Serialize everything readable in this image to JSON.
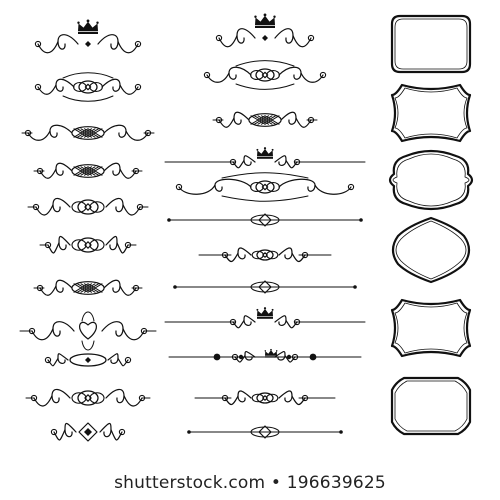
{
  "watermark": {
    "site": "shutterstock.com",
    "separator": "•",
    "image_id": "196639625"
  },
  "colors": {
    "ink": "#111111",
    "background": "#ffffff"
  },
  "elements": {
    "left_column": [
      "crowned-swirl",
      "scroll",
      "lattice",
      "lattice",
      "knot",
      "knot",
      "lattice",
      "heart-knot",
      "oval-knot",
      "knot",
      "diamond-knot",
      "crowned-knot"
    ],
    "middle_column": [
      "crowned-swirl",
      "scroll",
      "lattice",
      "crowned-divider",
      "scroll",
      "line-divider",
      "swirl-divider",
      "line-divider",
      "crowned-divider",
      "dotted-divider",
      "swirl-divider",
      "line-divider",
      "knot"
    ],
    "right_column": [
      "rounded-frame",
      "scalloped-frame",
      "wavy-frame",
      "ornate-frame",
      "scalloped-frame",
      "octagon-frame"
    ]
  }
}
